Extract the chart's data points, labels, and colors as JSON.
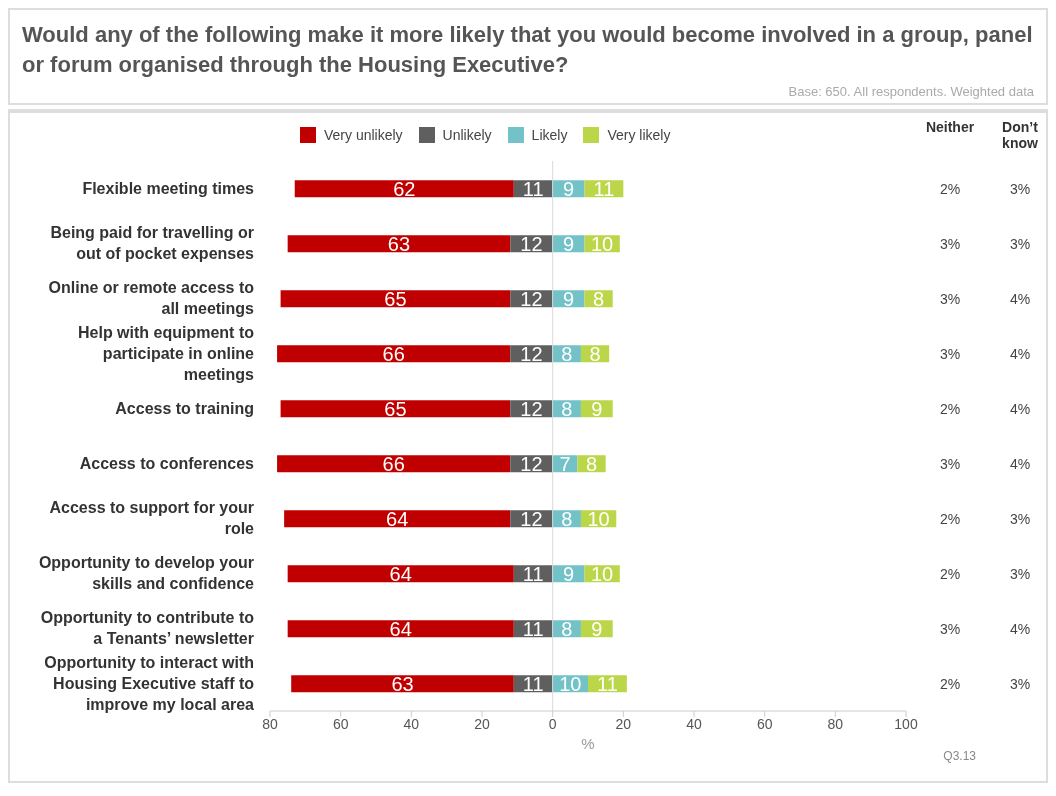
{
  "chart_data": {
    "type": "bar",
    "orientation": "horizontal",
    "title": "Would any of the following make it more likely that you would become involved in a group, panel or forum organised through the Housing Executive?",
    "subtitle": "Base: 650. All respondents. Weighted data",
    "xlabel": "%",
    "categories": [
      "Flexible meeting times",
      "Being paid for travelling or out of pocket expenses",
      "Online or remote access to all meetings",
      "Help with equipment to participate in online meetings",
      "Access to training",
      "Access to conferences",
      "Access to support for your role",
      "Opportunity to develop your skills and confidence",
      "Opportunity to contribute to a Tenants’ newsletter",
      "Opportunity to interact with Housing Executive staff to improve my local area"
    ],
    "series": [
      {
        "name": "Very unlikely",
        "color": "#c00000",
        "values": [
          62,
          63,
          65,
          66,
          65,
          66,
          64,
          64,
          64,
          63
        ],
        "base": [
          -73,
          -75,
          -77,
          -78,
          -77,
          -78,
          -76,
          -75,
          -75,
          -74
        ]
      },
      {
        "name": "Unlikely",
        "color": "#5f5f5f",
        "values": [
          11,
          12,
          12,
          12,
          12,
          12,
          12,
          11,
          11,
          11
        ],
        "base": [
          -11,
          -12,
          -12,
          -12,
          -12,
          -12,
          -12,
          -11,
          -11,
          -11
        ]
      },
      {
        "name": "Likely",
        "color": "#72c2c8",
        "values": [
          9,
          9,
          9,
          8,
          8,
          7,
          8,
          9,
          8,
          10
        ],
        "base": [
          0,
          0,
          0,
          0,
          0,
          0,
          0,
          0,
          0,
          0
        ]
      },
      {
        "name": "Very likely",
        "color": "#bcd64a",
        "values": [
          11,
          10,
          8,
          8,
          9,
          8,
          10,
          10,
          9,
          11
        ],
        "base": [
          9,
          9,
          9,
          8,
          8,
          7,
          8,
          9,
          8,
          10
        ]
      }
    ],
    "xlim": [
      -80,
      100
    ],
    "xticks": [
      {
        "value": -80,
        "label": "80"
      },
      {
        "value": -60,
        "label": "60"
      },
      {
        "value": -40,
        "label": "40"
      },
      {
        "value": -20,
        "label": "20"
      },
      0,
      20,
      40,
      60,
      80,
      100
    ],
    "ref_lines": [
      {
        "axis": "x",
        "value": 0,
        "color": "#d9d9d9"
      }
    ],
    "legend": "top",
    "data_labels": true,
    "annotations": [
      "Neither",
      "Don’t know",
      "2%",
      "3%",
      "3%",
      "3%",
      "3%",
      "4%",
      "3%",
      "4%",
      "2%",
      "4%",
      "3%",
      "4%",
      "2%",
      "3%",
      "2%",
      "3%",
      "3%",
      "4%",
      "2%",
      "3%",
      "Q3.13"
    ]
  }
}
